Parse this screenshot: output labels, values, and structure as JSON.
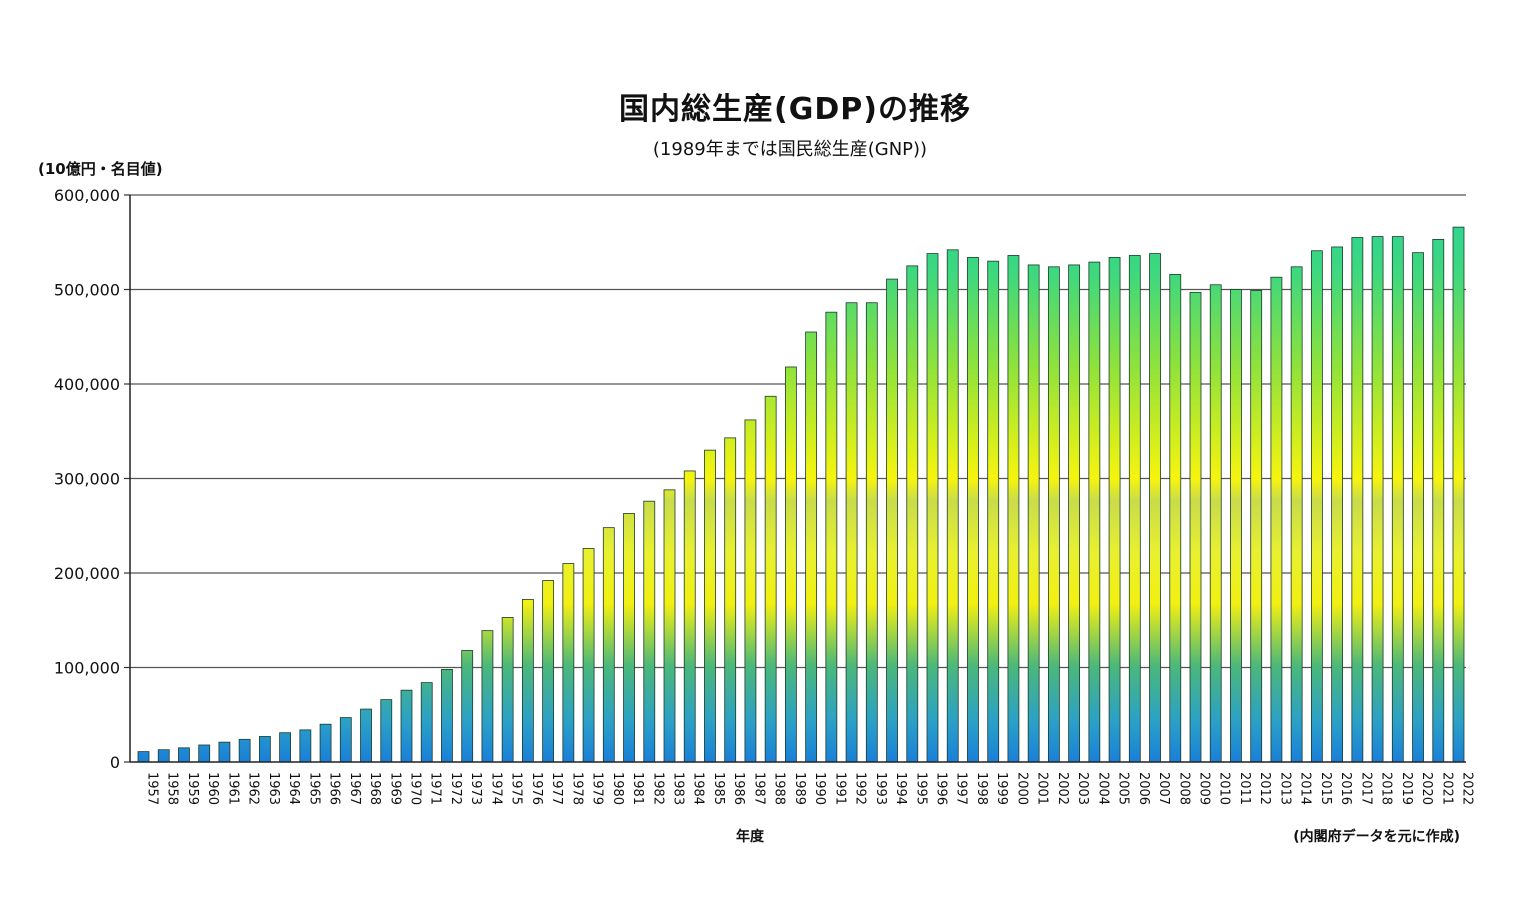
{
  "chart_data": {
    "type": "bar",
    "title": "国内総生産(GDP)の推移",
    "subtitle": "(1989年までは国民総生産(GNP))",
    "ylabel": "(10億円・名目値)",
    "xlabel": "年度",
    "source": "(内閣府データを元に作成)",
    "ylim": [
      0,
      600000
    ],
    "yticks": [
      "0",
      "100,000",
      "200,000",
      "300,000",
      "400,000",
      "500,000",
      "600,000"
    ],
    "grid": true,
    "categories": [
      "1957",
      "1958",
      "1959",
      "1960",
      "1961",
      "1962",
      "1963",
      "1964",
      "1965",
      "1966",
      "1967",
      "1968",
      "1969",
      "1970",
      "1971",
      "1972",
      "1973",
      "1974",
      "1975",
      "1976",
      "1977",
      "1978",
      "1979",
      "1980",
      "1981",
      "1982",
      "1983",
      "1984",
      "1985",
      "1986",
      "1987",
      "1988",
      "1989",
      "1990",
      "1991",
      "1992",
      "1993",
      "1994",
      "1995",
      "1996",
      "1997",
      "1998",
      "1999",
      "2000",
      "2001",
      "2002",
      "2003",
      "2004",
      "2005",
      "2006",
      "2007",
      "2008",
      "2009",
      "2010",
      "2011",
      "2012",
      "2013",
      "2014",
      "2015",
      "2016",
      "2017",
      "2018",
      "2019",
      "2020",
      "2021",
      "2022"
    ],
    "values": [
      11000,
      13000,
      15000,
      18000,
      21000,
      24000,
      27000,
      31000,
      34000,
      40000,
      47000,
      56000,
      66000,
      76000,
      84000,
      98000,
      118000,
      139000,
      153000,
      172000,
      192000,
      210000,
      226000,
      248000,
      263000,
      276000,
      288000,
      308000,
      330000,
      343000,
      362000,
      387000,
      418000,
      455000,
      476000,
      486000,
      486000,
      511000,
      525000,
      538000,
      542000,
      534000,
      530000,
      536000,
      526000,
      524000,
      526000,
      529000,
      534000,
      536000,
      538000,
      516000,
      497000,
      505000,
      500000,
      499000,
      513000,
      524000,
      541000,
      545000,
      555000,
      556000,
      556000,
      539000,
      553000,
      566000
    ]
  }
}
